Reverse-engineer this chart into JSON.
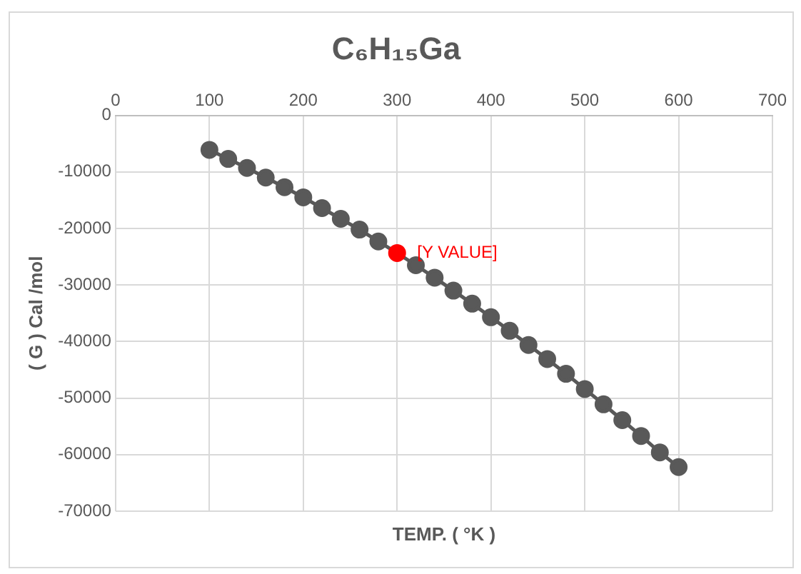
{
  "chart_data": {
    "type": "line",
    "title": "C₆H₁₅Ga",
    "xlabel": "TEMP. ( °K )",
    "ylabel": "( G ) Cal /mol",
    "x": [
      100,
      120,
      140,
      160,
      180,
      200,
      220,
      240,
      260,
      280,
      300,
      320,
      340,
      360,
      380,
      400,
      420,
      440,
      460,
      480,
      500,
      520,
      540,
      560,
      580,
      600
    ],
    "series": [
      {
        "color": "#595959",
        "colors": [
          "#595959",
          "#595959",
          "#595959",
          "#595959",
          "#595959",
          "#595959",
          "#595959",
          "#595959",
          "#595959",
          "#595959",
          "#ff0000",
          "#595959",
          "#595959",
          "#595959",
          "#595959",
          "#595959",
          "#595959",
          "#595959",
          "#595959",
          "#595959",
          "#595959",
          "#595959",
          "#595959",
          "#595959",
          "#595959",
          "#595959"
        ],
        "values": [
          -6100,
          -7700,
          -9300,
          -11000,
          -12700,
          -14500,
          -16400,
          -18300,
          -20200,
          -22300,
          -24350,
          -26500,
          -28700,
          -31000,
          -33300,
          -35700,
          -38100,
          -40600,
          -43100,
          -45700,
          -48400,
          -51100,
          -53900,
          -56700,
          -59600,
          -62200
        ]
      }
    ],
    "annotations": [
      {
        "text": "[Y VALUE]",
        "x": 300,
        "y": -24350
      }
    ],
    "xlim": [
      0,
      700
    ],
    "xticks": [
      0,
      100,
      200,
      300,
      400,
      500,
      600,
      700
    ],
    "ylim": [
      -70000,
      0
    ],
    "yticks": [
      -70000,
      -60000,
      -50000,
      -40000,
      -30000,
      -20000,
      -10000,
      0
    ],
    "grid": true,
    "legend": false,
    "marker": "circle",
    "line_style": "solid"
  }
}
